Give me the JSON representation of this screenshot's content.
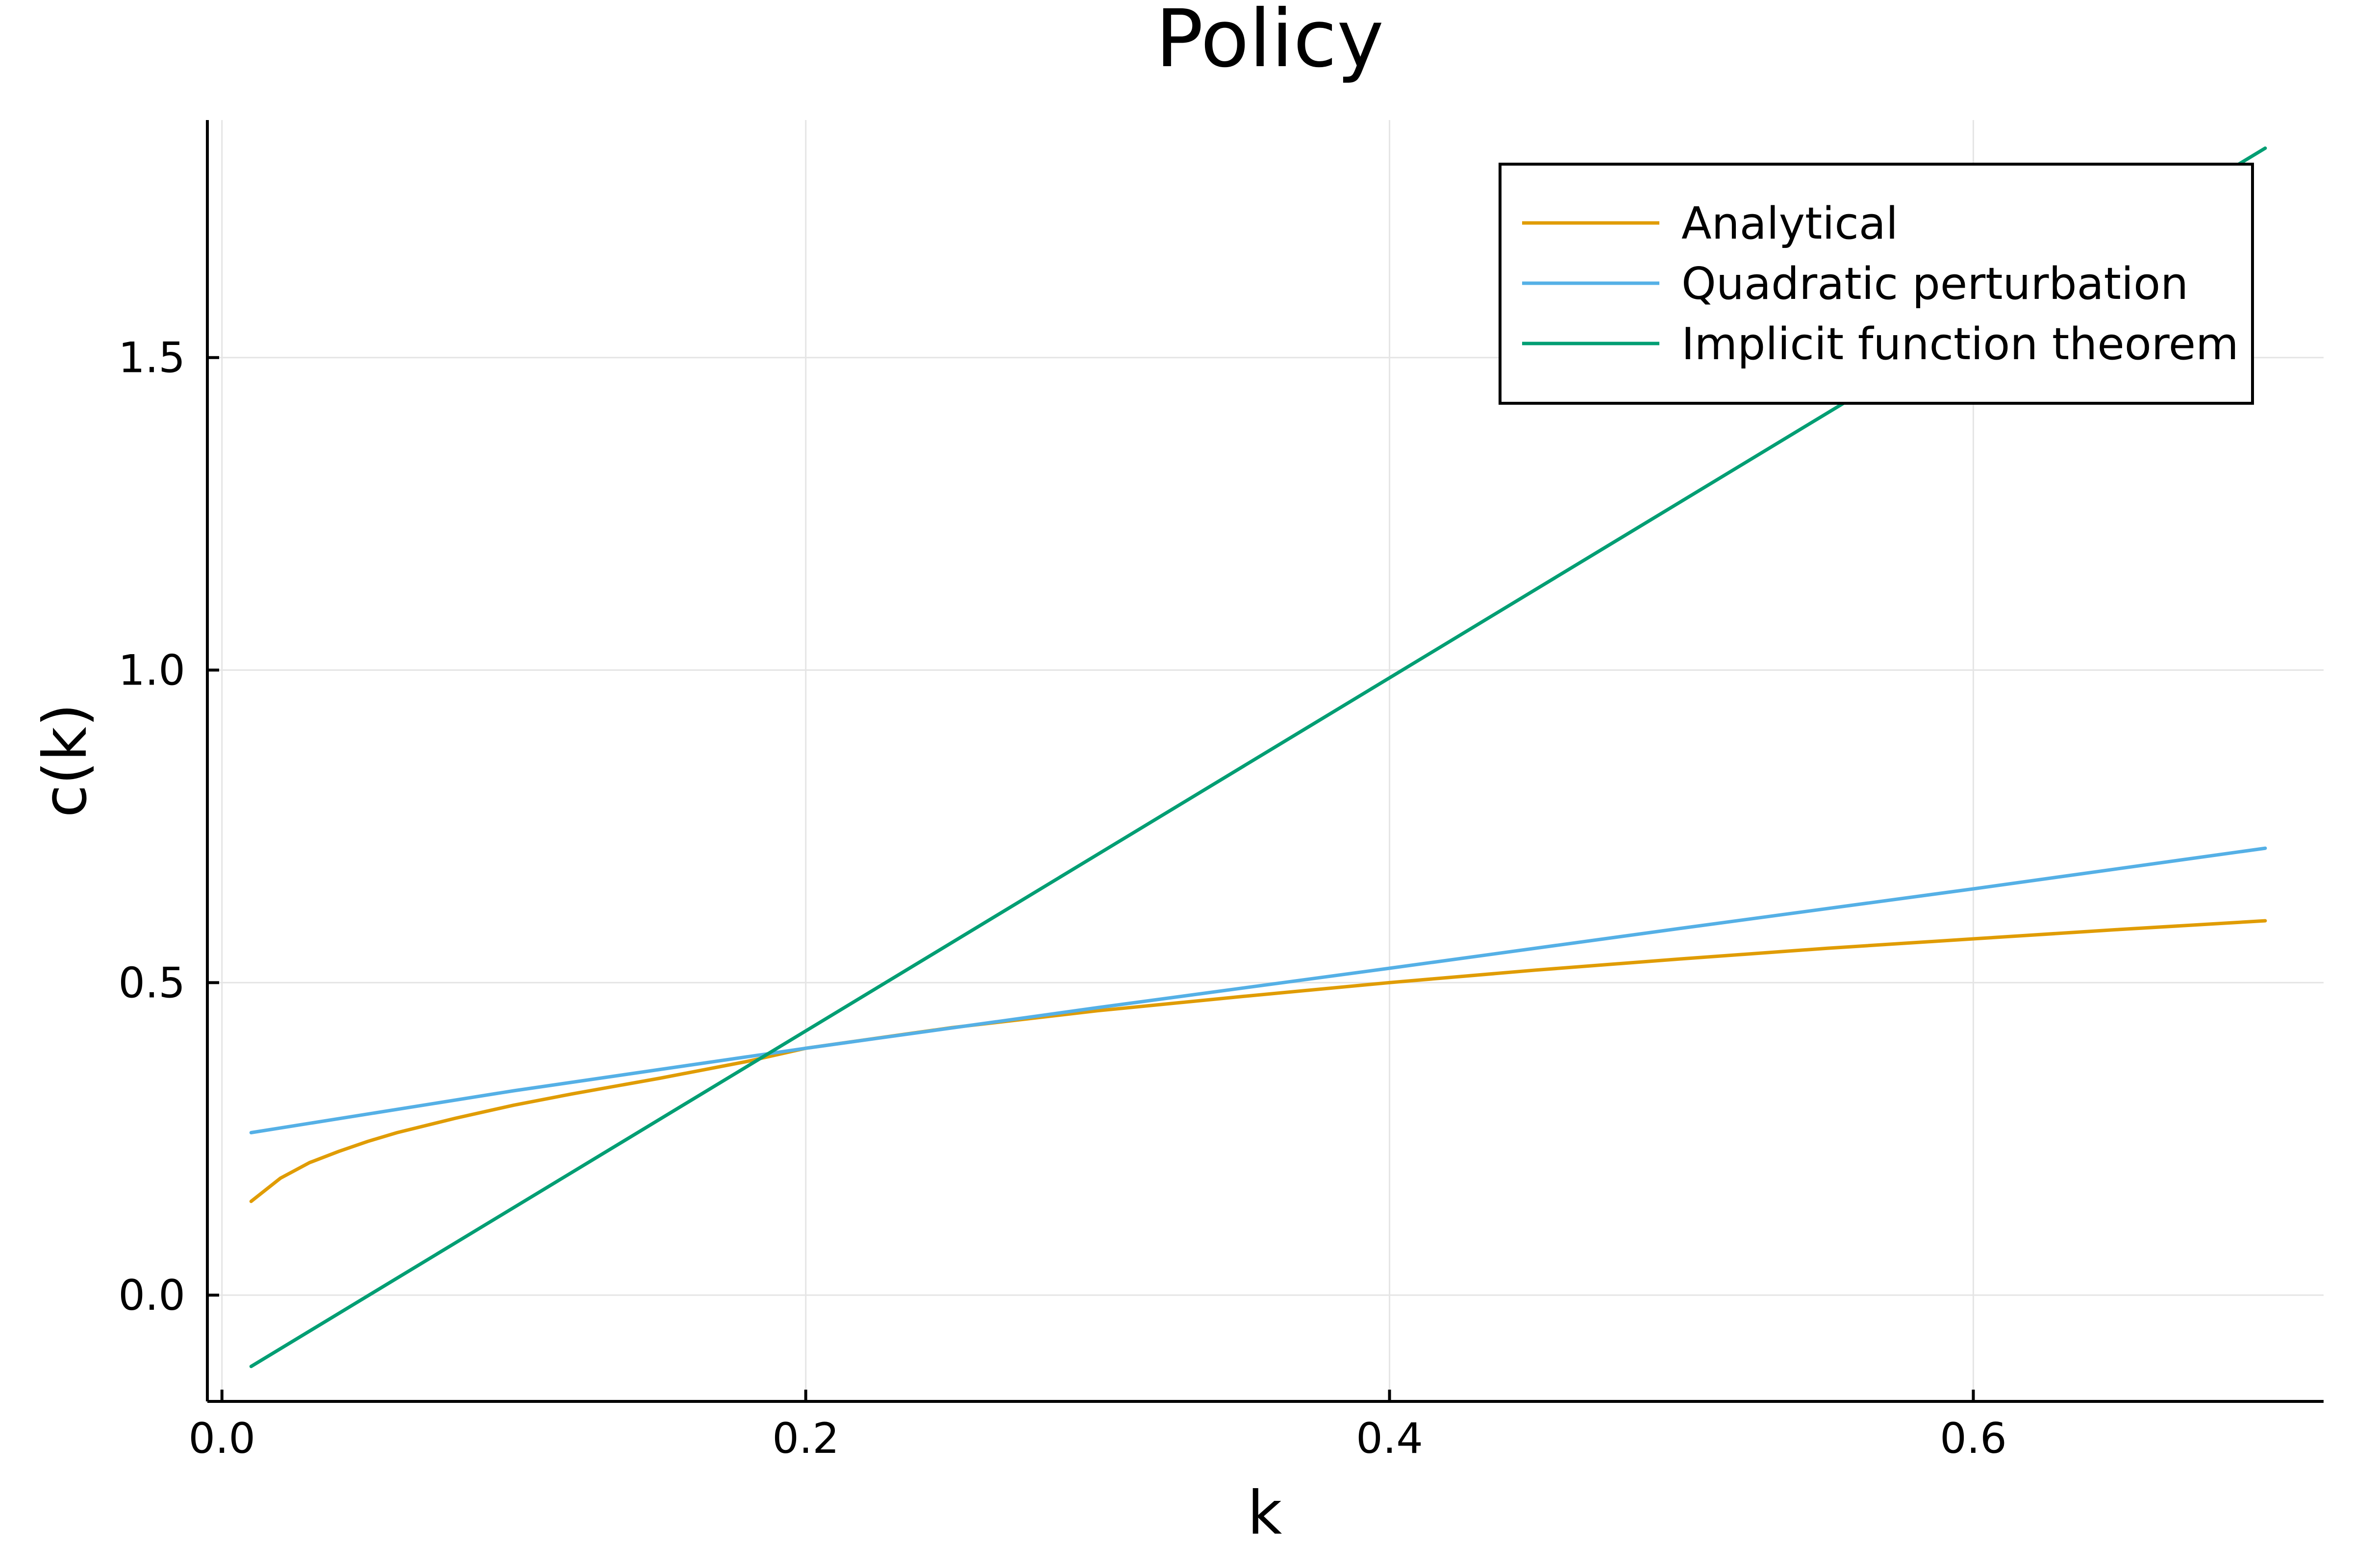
{
  "chart_data": {
    "type": "line",
    "title": "Policy",
    "xlabel": "k",
    "ylabel": "c(k)",
    "xlim": [
      -0.005,
      0.72
    ],
    "ylim": [
      -0.17,
      1.88
    ],
    "xticks": [
      0.0,
      0.2,
      0.4,
      0.6
    ],
    "xtick_labels": [
      "0.0",
      "0.2",
      "0.4",
      "0.6"
    ],
    "yticks": [
      0.0,
      0.5,
      1.0,
      1.5
    ],
    "ytick_labels": [
      "0.0",
      "0.5",
      "1.0",
      "1.5"
    ],
    "grid": true,
    "legend_position": "top-right",
    "colors": {
      "axis": "#000000",
      "grid": "#e5e5e5"
    },
    "series": [
      {
        "name": "Analytical",
        "color": "#e09c04",
        "x": [
          0.01,
          0.02,
          0.03,
          0.04,
          0.05,
          0.06,
          0.08,
          0.1,
          0.12,
          0.15,
          0.18,
          0.2,
          0.25,
          0.3,
          0.35,
          0.4,
          0.45,
          0.5,
          0.55,
          0.6,
          0.65,
          0.7
        ],
        "y": [
          0.15,
          0.187,
          0.212,
          0.23,
          0.246,
          0.26,
          0.283,
          0.304,
          0.322,
          0.347,
          0.374,
          0.395,
          0.428,
          0.455,
          0.478,
          0.5,
          0.52,
          0.538,
          0.555,
          0.57,
          0.585,
          0.599
        ]
      },
      {
        "name": "Quadratic perturbation",
        "color": "#55b0e6",
        "x": [
          0.01,
          0.1,
          0.2,
          0.3,
          0.4,
          0.5,
          0.6,
          0.7
        ],
        "y": [
          0.26,
          0.327,
          0.395,
          0.46,
          0.523,
          0.587,
          0.65,
          0.715
        ]
      },
      {
        "name": "Implicit function theorem",
        "color": "#009e73",
        "x": [
          0.01,
          0.7
        ],
        "y": [
          -0.114,
          1.835
        ]
      }
    ]
  }
}
